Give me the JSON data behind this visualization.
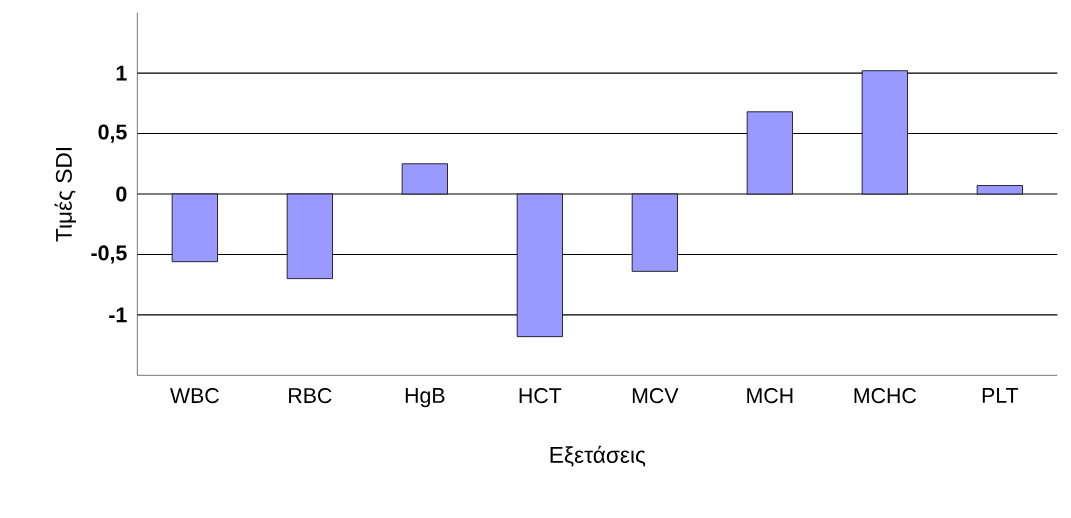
{
  "chart_data": {
    "type": "bar",
    "xlabel": "Εξετάσεις",
    "ylabel": "Τιμές SDI",
    "categories": [
      "WBC",
      "RBC",
      "HgB",
      "HCT",
      "MCV",
      "MCH",
      "MCHC",
      "PLT"
    ],
    "values": [
      -0.56,
      -0.7,
      0.25,
      -1.18,
      -0.64,
      0.68,
      1.02,
      0.07
    ],
    "color": "#9999ff",
    "ylim": [
      -1.5,
      1.5
    ],
    "yticks": [
      -1,
      {
        "value": -0.5,
        "label": "-0,5"
      },
      0,
      {
        "value": 0.5,
        "label": "0,5"
      },
      1
    ],
    "grid": "y"
  }
}
